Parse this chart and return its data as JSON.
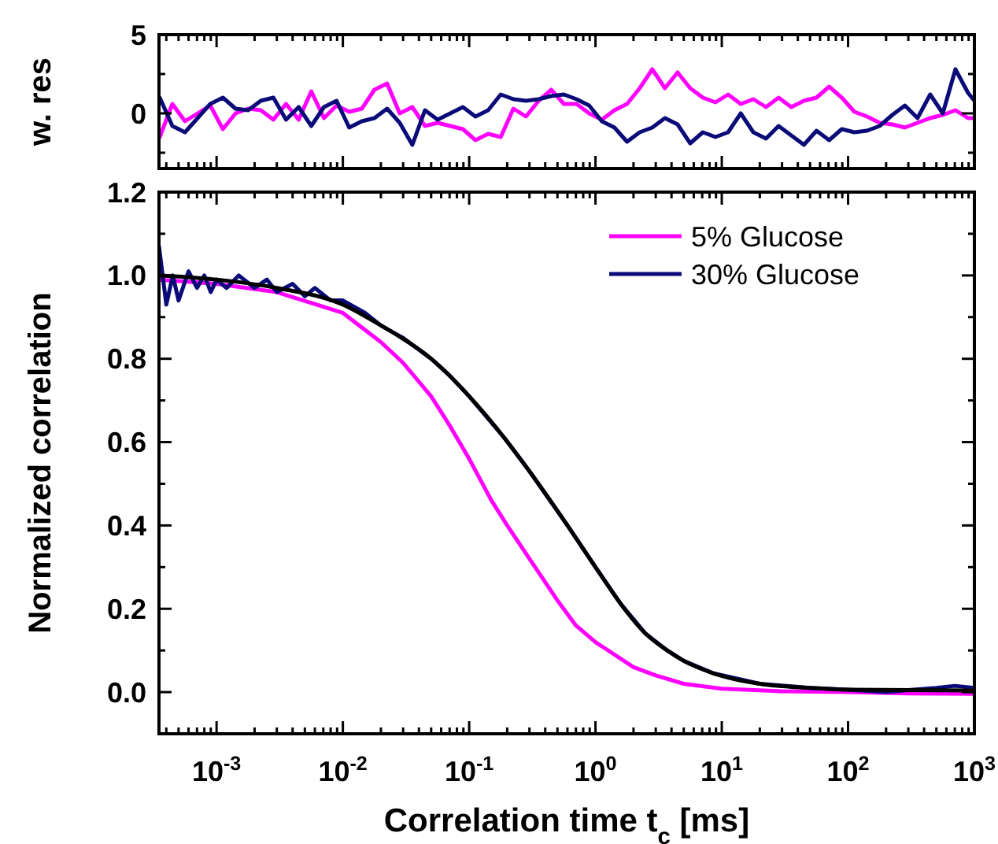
{
  "chart_data": [
    {
      "type": "line",
      "ylabel": "w. res",
      "log": "x",
      "tick_labels": "y",
      "xlim": [
        0.00035,
        1000
      ],
      "ylim": [
        -3.5,
        5
      ],
      "yticks": [
        {
          "value": -2.5,
          "label": null
        },
        0,
        {
          "value": 2.5,
          "label": null
        },
        5
      ],
      "xticks": [
        {
          "value": 0.001,
          "label": null
        },
        {
          "value": 0.01,
          "label": null
        },
        {
          "value": 0.1,
          "label": null
        },
        {
          "value": 1,
          "label": null
        },
        {
          "value": 10,
          "label": null
        },
        {
          "value": 100,
          "label": null
        },
        {
          "value": 1000,
          "label": null
        },
        {
          "value": 0.0004,
          "label": null
        },
        {
          "value": 0.0005,
          "label": null
        },
        {
          "value": 0.0006,
          "label": null
        },
        {
          "value": 0.0007,
          "label": null
        },
        {
          "value": 0.0008,
          "label": null
        },
        {
          "value": 0.0009,
          "label": null
        },
        {
          "value": 0.002,
          "label": null
        },
        {
          "value": 0.003,
          "label": null
        },
        {
          "value": 0.004,
          "label": null
        },
        {
          "value": 0.005,
          "label": null
        },
        {
          "value": 0.006,
          "label": null
        },
        {
          "value": 0.007,
          "label": null
        },
        {
          "value": 0.008,
          "label": null
        },
        {
          "value": 0.009,
          "label": null
        },
        {
          "value": 0.02,
          "label": null
        },
        {
          "value": 0.03,
          "label": null
        },
        {
          "value": 0.04,
          "label": null
        },
        {
          "value": 0.05,
          "label": null
        },
        {
          "value": 0.06,
          "label": null
        },
        {
          "value": 0.07,
          "label": null
        },
        {
          "value": 0.08,
          "label": null
        },
        {
          "value": 0.09,
          "label": null
        },
        {
          "value": 0.2,
          "label": null
        },
        {
          "value": 0.3,
          "label": null
        },
        {
          "value": 0.4,
          "label": null
        },
        {
          "value": 0.5,
          "label": null
        },
        {
          "value": 0.6,
          "label": null
        },
        {
          "value": 0.7,
          "label": null
        },
        {
          "value": 0.8,
          "label": null
        },
        {
          "value": 0.9,
          "label": null
        },
        {
          "value": 2,
          "label": null
        },
        {
          "value": 3,
          "label": null
        },
        {
          "value": 4,
          "label": null
        },
        {
          "value": 5,
          "label": null
        },
        {
          "value": 6,
          "label": null
        },
        {
          "value": 7,
          "label": null
        },
        {
          "value": 8,
          "label": null
        },
        {
          "value": 9,
          "label": null
        },
        {
          "value": 20,
          "label": null
        },
        {
          "value": 30,
          "label": null
        },
        {
          "value": 40,
          "label": null
        },
        {
          "value": 50,
          "label": null
        },
        {
          "value": 60,
          "label": null
        },
        {
          "value": 70,
          "label": null
        },
        {
          "value": 80,
          "label": null
        },
        {
          "value": 90,
          "label": null
        },
        {
          "value": 200,
          "label": null
        },
        {
          "value": 300,
          "label": null
        },
        {
          "value": 400,
          "label": null
        },
        {
          "value": 500,
          "label": null
        },
        {
          "value": 600,
          "label": null
        },
        {
          "value": 700,
          "label": null
        },
        {
          "value": 800,
          "label": null
        },
        {
          "value": 900,
          "label": null
        }
      ],
      "x": [
        0.0003548,
        0.0004467,
        0.0005623,
        0.0007079,
        0.0008913,
        0.001122,
        0.001413,
        0.001778,
        0.002239,
        0.002818,
        0.003548,
        0.004467,
        0.005623,
        0.007079,
        0.008913,
        0.01122,
        0.01413,
        0.01778,
        0.02239,
        0.02818,
        0.03548,
        0.04467,
        0.05623,
        0.07079,
        0.08913,
        0.1122,
        0.1413,
        0.1778,
        0.2239,
        0.2818,
        0.3548,
        0.4467,
        0.5623,
        0.7079,
        0.8913,
        1.122,
        1.413,
        1.778,
        2.239,
        2.818,
        3.548,
        4.467,
        5.623,
        7.079,
        8.913,
        11.22,
        14.13,
        17.78,
        22.39,
        28.18,
        35.48,
        44.67,
        56.23,
        70.79,
        89.13,
        112.2,
        141.3,
        177.8,
        223.9,
        281.8,
        354.8,
        446.7,
        562.3,
        707.9,
        891.3,
        1000
      ],
      "series": [
        {
          "color": "#ff00ff",
          "values": [
            -1.5,
            0.6,
            -0.5,
            0.0,
            0.5,
            -1.0,
            0.0,
            0.3,
            0.2,
            -0.4,
            0.6,
            -0.4,
            1.4,
            -0.3,
            0.5,
            0.1,
            0.3,
            1.5,
            1.9,
            0.0,
            0.4,
            -0.8,
            -0.6,
            -0.8,
            -1.0,
            -1.7,
            -1.3,
            -1.5,
            0.3,
            -0.2,
            0.8,
            1.5,
            0.6,
            0.6,
            0.0,
            -0.4,
            0.2,
            0.6,
            1.6,
            2.8,
            1.6,
            2.6,
            1.6,
            1.0,
            0.7,
            1.2,
            0.6,
            0.9,
            0.4,
            1.0,
            0.4,
            0.8,
            1.0,
            1.7,
            1.0,
            0.1,
            -0.2,
            -0.6,
            -0.7,
            -0.9,
            -0.6,
            -0.3,
            -0.1,
            0.2,
            -0.3,
            -0.3
          ]
        },
        {
          "color": "#0a0a78",
          "values": [
            1.0,
            -0.8,
            -1.2,
            -0.3,
            0.6,
            1.0,
            0.3,
            0.2,
            0.8,
            1.0,
            -0.4,
            0.4,
            -0.8,
            0.4,
            0.8,
            -0.9,
            -0.5,
            -0.3,
            0.3,
            -0.6,
            -2.0,
            0.2,
            -0.4,
            0.0,
            0.4,
            -0.2,
            0.2,
            1.2,
            0.9,
            0.8,
            0.9,
            1.1,
            1.2,
            0.9,
            0.5,
            -0.5,
            -0.9,
            -1.8,
            -1.2,
            -0.9,
            -0.3,
            -0.7,
            -1.9,
            -1.2,
            -1.5,
            -1.2,
            0.0,
            -1.2,
            -1.6,
            -0.8,
            -1.4,
            -2.0,
            -1.1,
            -1.7,
            -1.0,
            -1.2,
            -1.1,
            -0.8,
            -0.1,
            0.5,
            -0.3,
            1.2,
            0.0,
            2.8,
            1.3,
            0.8
          ]
        }
      ]
    },
    {
      "type": "line",
      "xlabel": "Correlation time t$_{c}$ [ms]",
      "ylabel": "Normalized correlation",
      "log": "x",
      "legend": "top right",
      "xlim": [
        0.00035,
        1000
      ],
      "ylim": [
        -0.1,
        1.2
      ],
      "yticks": [
        {
          "value": 0,
          "label": "0.0"
        },
        {
          "value": 0.2,
          "label": "0.2"
        },
        {
          "value": 0.4,
          "label": "0.4"
        },
        {
          "value": 0.6,
          "label": "0.6"
        },
        {
          "value": 0.8,
          "label": "0.8"
        },
        {
          "value": 1,
          "label": "1.0"
        },
        {
          "value": 1.2,
          "label": "1.2"
        },
        {
          "value": -0.1,
          "label": null
        },
        {
          "value": 0.1,
          "label": null
        },
        {
          "value": 0.3,
          "label": null
        },
        {
          "value": 0.5,
          "label": null
        },
        {
          "value": 0.7,
          "label": null
        },
        {
          "value": 0.9,
          "label": null
        },
        {
          "value": 1.1,
          "label": null
        }
      ],
      "xticks": [
        {
          "value": 0.001,
          "label": "10$^{-3}$"
        },
        {
          "value": 0.01,
          "label": "10$^{-2}$"
        },
        {
          "value": 0.1,
          "label": "10$^{-1}$"
        },
        {
          "value": 1,
          "label": "10$^{0}$"
        },
        {
          "value": 10,
          "label": "10$^{1}$"
        },
        {
          "value": 100,
          "label": "10$^{2}$"
        },
        {
          "value": 1000,
          "label": "10$^{3}$"
        },
        {
          "value": 0.0004,
          "label": null
        },
        {
          "value": 0.0005,
          "label": null
        },
        {
          "value": 0.0006,
          "label": null
        },
        {
          "value": 0.0007,
          "label": null
        },
        {
          "value": 0.0008,
          "label": null
        },
        {
          "value": 0.0009,
          "label": null
        },
        {
          "value": 0.002,
          "label": null
        },
        {
          "value": 0.003,
          "label": null
        },
        {
          "value": 0.004,
          "label": null
        },
        {
          "value": 0.005,
          "label": null
        },
        {
          "value": 0.006,
          "label": null
        },
        {
          "value": 0.007,
          "label": null
        },
        {
          "value": 0.008,
          "label": null
        },
        {
          "value": 0.009,
          "label": null
        },
        {
          "value": 0.02,
          "label": null
        },
        {
          "value": 0.03,
          "label": null
        },
        {
          "value": 0.04,
          "label": null
        },
        {
          "value": 0.05,
          "label": null
        },
        {
          "value": 0.06,
          "label": null
        },
        {
          "value": 0.07,
          "label": null
        },
        {
          "value": 0.08,
          "label": null
        },
        {
          "value": 0.09,
          "label": null
        },
        {
          "value": 0.2,
          "label": null
        },
        {
          "value": 0.3,
          "label": null
        },
        {
          "value": 0.4,
          "label": null
        },
        {
          "value": 0.5,
          "label": null
        },
        {
          "value": 0.6,
          "label": null
        },
        {
          "value": 0.7,
          "label": null
        },
        {
          "value": 0.8,
          "label": null
        },
        {
          "value": 0.9,
          "label": null
        },
        {
          "value": 2,
          "label": null
        },
        {
          "value": 3,
          "label": null
        },
        {
          "value": 4,
          "label": null
        },
        {
          "value": 5,
          "label": null
        },
        {
          "value": 6,
          "label": null
        },
        {
          "value": 7,
          "label": null
        },
        {
          "value": 8,
          "label": null
        },
        {
          "value": 9,
          "label": null
        },
        {
          "value": 20,
          "label": null
        },
        {
          "value": 30,
          "label": null
        },
        {
          "value": 40,
          "label": null
        },
        {
          "value": 50,
          "label": null
        },
        {
          "value": 60,
          "label": null
        },
        {
          "value": 70,
          "label": null
        },
        {
          "value": 80,
          "label": null
        },
        {
          "value": 90,
          "label": null
        },
        {
          "value": 200,
          "label": null
        },
        {
          "value": 300,
          "label": null
        },
        {
          "value": 400,
          "label": null
        },
        {
          "value": 500,
          "label": null
        },
        {
          "value": 600,
          "label": null
        },
        {
          "value": 700,
          "label": null
        },
        {
          "value": 800,
          "label": null
        },
        {
          "value": 900,
          "label": null
        }
      ],
      "series": [
        {
          "name": "5% Glucose",
          "color": "#ff00ff",
          "x": [
            0.00035,
            0.001,
            0.003,
            0.01,
            0.02,
            0.03,
            0.05,
            0.07,
            0.1,
            0.15,
            0.2,
            0.3,
            0.5,
            0.7,
            1,
            2,
            3,
            5,
            10,
            30,
            100,
            300,
            1000
          ],
          "values": [
            0.99,
            0.98,
            0.96,
            0.91,
            0.84,
            0.79,
            0.71,
            0.64,
            0.56,
            0.46,
            0.4,
            0.32,
            0.22,
            0.16,
            0.12,
            0.06,
            0.04,
            0.02,
            0.008,
            0.002,
            0,
            -0.003,
            -0.004
          ]
        },
        {
          "name": "30% Glucose",
          "color": "#0a0a78",
          "x": [
            0.00035,
            0.0004,
            0.00045,
            0.0005,
            0.0006,
            0.0007,
            0.0008,
            0.0009,
            0.001,
            0.0012,
            0.0015,
            0.002,
            0.0025,
            0.003,
            0.004,
            0.005,
            0.006,
            0.008,
            0.01,
            0.015,
            0.02,
            0.03,
            0.05,
            0.07,
            0.1,
            0.19,
            0.3,
            0.6,
            1,
            1.6,
            2.5,
            3.7,
            5,
            8.6,
            20,
            50,
            100,
            200,
            300,
            500,
            700,
            1000
          ],
          "values": [
            1.07,
            0.93,
            1.0,
            0.94,
            1.01,
            0.97,
            1.0,
            0.96,
            0.99,
            0.97,
            1.0,
            0.97,
            0.99,
            0.96,
            0.98,
            0.95,
            0.97,
            0.94,
            0.94,
            0.91,
            0.88,
            0.85,
            0.8,
            0.76,
            0.71,
            0.61,
            0.53,
            0.4,
            0.3,
            0.21,
            0.14,
            0.1,
            0.075,
            0.045,
            0.02,
            0.01,
            0.006,
            0,
            0.005,
            0.01,
            0.015,
            0.01
          ]
        },
        {
          "color": "#000000",
          "x": [
            0.00035,
            0.001,
            0.003,
            0.01,
            0.02,
            0.05,
            0.1,
            0.19,
            0.3,
            0.6,
            1,
            1.6,
            2.5,
            3.7,
            5,
            8.6,
            20,
            50,
            100,
            1000
          ],
          "values": [
            1.0,
            0.99,
            0.97,
            0.93,
            0.88,
            0.8,
            0.71,
            0.61,
            0.53,
            0.4,
            0.3,
            0.21,
            0.14,
            0.1,
            0.075,
            0.045,
            0.02,
            0.01,
            0.006,
            0.004
          ]
        }
      ]
    }
  ]
}
